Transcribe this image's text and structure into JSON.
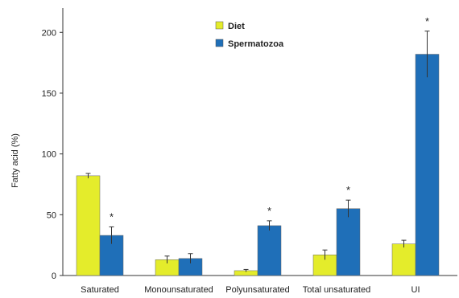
{
  "chart_data": {
    "type": "bar",
    "categories": [
      "Saturated",
      "Monounsaturated",
      "Polyunsaturated",
      "Total unsaturated",
      "UI"
    ],
    "series": [
      {
        "name": "Diet",
        "color": "#e4ec2b",
        "values": [
          82,
          13,
          4,
          17,
          26
        ],
        "errors": [
          2,
          3,
          1,
          4,
          3
        ]
      },
      {
        "name": "Spermatozoa",
        "color": "#1f6fb8",
        "values": [
          33,
          14,
          41,
          55,
          182
        ],
        "errors": [
          7,
          4,
          4,
          7,
          19
        ]
      }
    ],
    "significance_marker": "*",
    "significant": [
      true,
      false,
      true,
      true,
      true
    ],
    "ylabel": "Fatty acid (%)",
    "ylim": [
      0,
      220
    ],
    "yticks": [
      0,
      50,
      100,
      150,
      200
    ],
    "legend_position": "top-center",
    "grid": false
  }
}
